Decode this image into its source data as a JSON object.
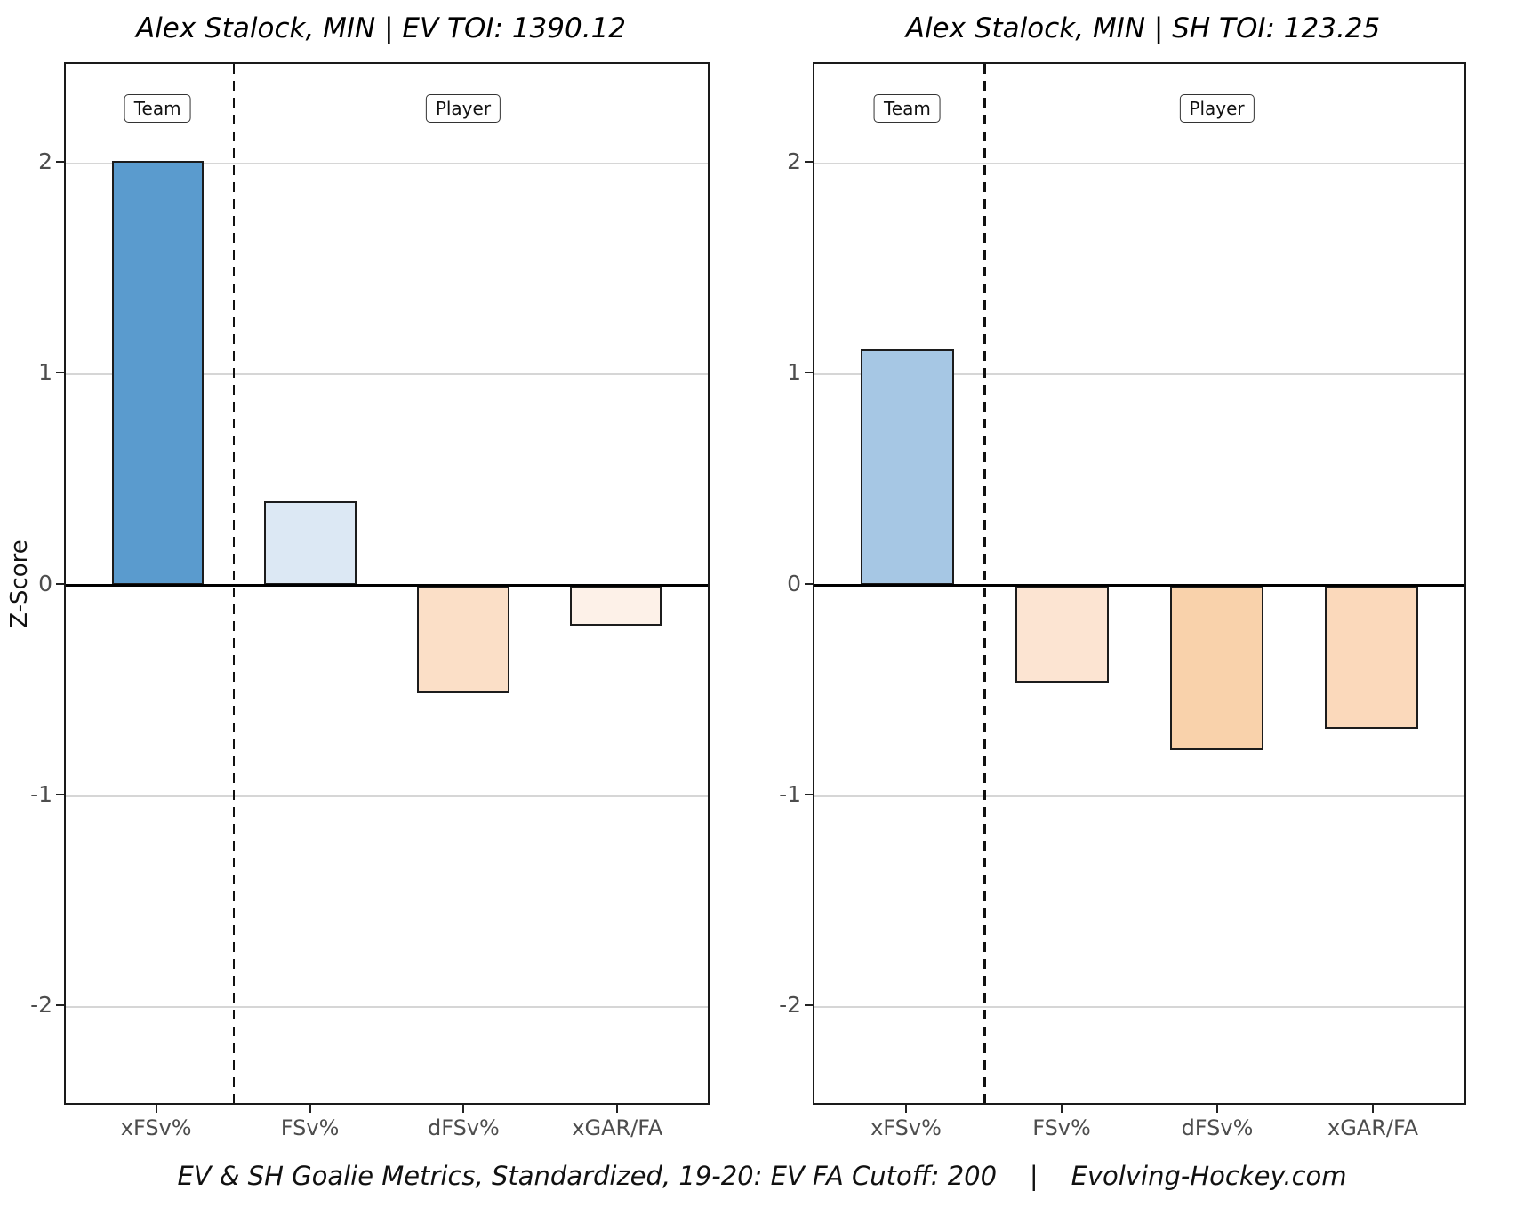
{
  "figure": {
    "y_axis_label": "Z-Score",
    "caption": "EV & SH Goalie Metrics, Standardized, 19-20: EV FA Cutoff: 200    |    Evolving-Hockey.com"
  },
  "chart_data": [
    {
      "type": "bar",
      "title": "Alex Stalock, MIN | EV TOI: 1390.12",
      "group_labels": [
        "Team",
        "Player"
      ],
      "categories": [
        "xFSv%",
        "FSv%",
        "dFSv%",
        "xGAR/FA"
      ],
      "values": [
        2.01,
        0.4,
        -0.51,
        -0.19
      ],
      "bar_colors": [
        "#5a9bce",
        "#dce8f4",
        "#fbdfc7",
        "#fdf1e8"
      ],
      "xlabel": "",
      "ylabel": "Z-Score",
      "ylim": [
        -2.47,
        2.47
      ],
      "yticks": [
        2,
        1,
        0,
        -1,
        -2
      ],
      "separator_after_category": 1,
      "grid": "horizontal-major",
      "legend": "none"
    },
    {
      "type": "bar",
      "title": "Alex Stalock, MIN | SH TOI: 123.25",
      "group_labels": [
        "Team",
        "Player"
      ],
      "categories": [
        "xFSv%",
        "FSv%",
        "dFSv%",
        "xGAR/FA"
      ],
      "values": [
        1.12,
        -0.46,
        -0.78,
        -0.68
      ],
      "bar_colors": [
        "#a6c7e4",
        "#fce4d2",
        "#f9d2ab",
        "#fbd9bb"
      ],
      "xlabel": "",
      "ylabel": "Z-Score",
      "ylim": [
        -2.47,
        2.47
      ],
      "yticks": [
        2,
        1,
        0,
        -1,
        -2
      ],
      "separator_after_category": 1,
      "grid": "horizontal-major",
      "legend": "none"
    }
  ]
}
